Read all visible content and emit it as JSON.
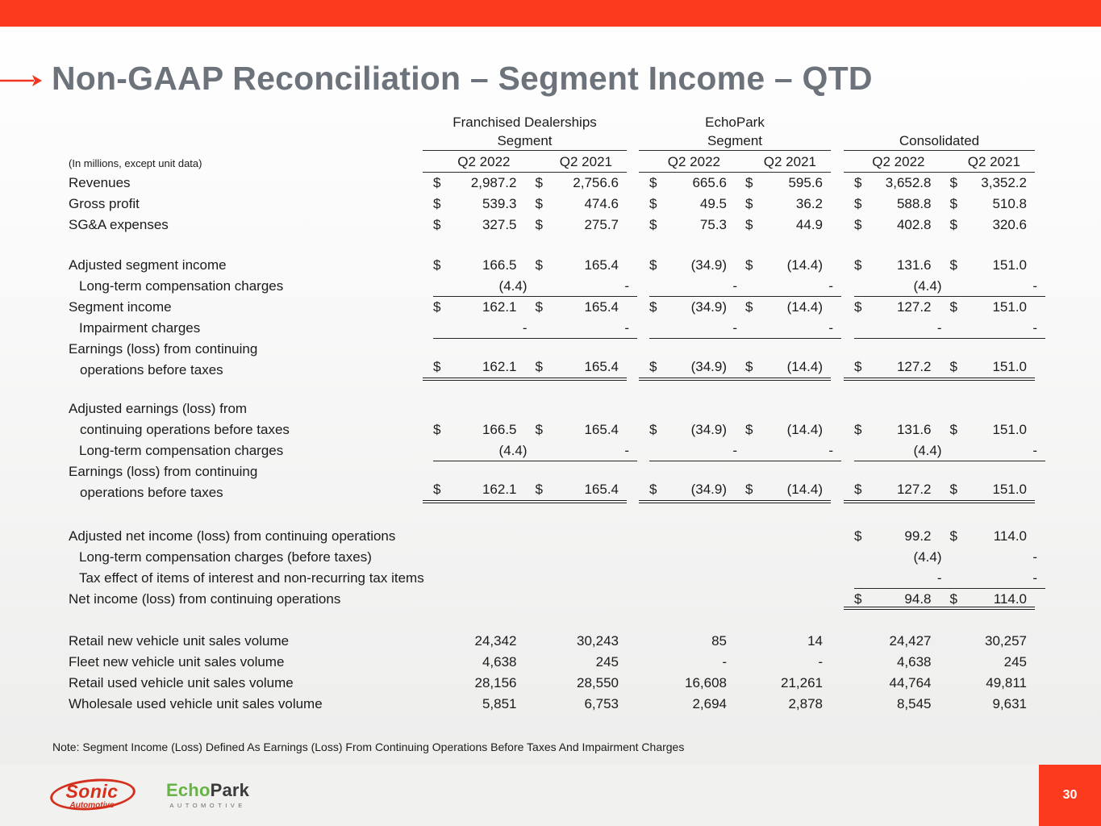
{
  "slide": {
    "title": "Non-GAAP Reconciliation – Segment Income – QTD",
    "note": "Note: Segment Income (Loss) Defined As Earnings (Loss) From Continuing Operations Before Taxes And Impairment Charges",
    "accent_color": "#fb3a1e",
    "title_color": "#6d737b",
    "page_number": "30"
  },
  "table": {
    "units_note": "(In millions, except unit data)",
    "groups": [
      {
        "name_line1": "Franchised Dealerships",
        "name_line2": "Segment",
        "cols": [
          "Q2 2022",
          "Q2 2021"
        ]
      },
      {
        "name_line1": "EchoPark",
        "name_line2": "Segment",
        "cols": [
          "Q2 2022",
          "Q2 2021"
        ]
      },
      {
        "name_line1": "",
        "name_line2": "Consolidated",
        "cols": [
          "Q2 2022",
          "Q2 2021"
        ]
      }
    ],
    "rows": [
      {
        "label": "Revenues",
        "dollar": true,
        "values": [
          "2,987.2",
          "2,756.6",
          "665.6",
          "595.6",
          "3,652.8",
          "3,352.2"
        ]
      },
      {
        "label": "Gross profit",
        "dollar": true,
        "values": [
          "539.3",
          "474.6",
          "49.5",
          "36.2",
          "588.8",
          "510.8"
        ]
      },
      {
        "label": "SG&A expenses",
        "dollar": true,
        "values": [
          "327.5",
          "275.7",
          "75.3",
          "44.9",
          "402.8",
          "320.6"
        ]
      },
      {
        "spacer": 24
      },
      {
        "label": "Adjusted segment income",
        "dollar": true,
        "values": [
          "166.5",
          "165.4",
          "(34.9)",
          "(14.4)",
          "131.6",
          "151.0"
        ]
      },
      {
        "label": "Long-term compensation charges",
        "indent": 1,
        "values": [
          "(4.4)",
          "-",
          "-",
          "-",
          "(4.4)",
          "-"
        ],
        "rule": "single"
      },
      {
        "label": "Segment income",
        "dollar": true,
        "values": [
          "162.1",
          "165.4",
          "(34.9)",
          "(14.4)",
          "127.2",
          "151.0"
        ]
      },
      {
        "label": "Impairment charges",
        "indent": 1,
        "values": [
          "-",
          "-",
          "-",
          "-",
          "-",
          "-"
        ],
        "rule": "single"
      },
      {
        "lines": [
          "Earnings (loss) from continuing",
          "operations before taxes"
        ],
        "dollar": true,
        "values": [
          "162.1",
          "165.4",
          "(34.9)",
          "(14.4)",
          "127.2",
          "151.0"
        ],
        "rule": "double"
      },
      {
        "spacer": 22
      },
      {
        "lines": [
          "Adjusted earnings (loss) from",
          "continuing operations before taxes"
        ],
        "dollar": true,
        "values": [
          "166.5",
          "165.4",
          "(34.9)",
          "(14.4)",
          "131.6",
          "151.0"
        ]
      },
      {
        "label": "Long-term compensation charges",
        "indent": 1,
        "values": [
          "(4.4)",
          "-",
          "-",
          "-",
          "(4.4)",
          "-"
        ],
        "rule": "single"
      },
      {
        "lines": [
          "Earnings (loss) from continuing",
          "operations before taxes"
        ],
        "dollar": true,
        "values": [
          "162.1",
          "165.4",
          "(34.9)",
          "(14.4)",
          "127.2",
          "151.0"
        ],
        "rule": "double"
      },
      {
        "spacer": 28
      },
      {
        "label": "Adjusted net income (loss) from continuing operations",
        "dollar": true,
        "values": [
          "",
          "",
          "",
          "",
          "99.2",
          "114.0"
        ]
      },
      {
        "label": "Long-term compensation charges (before taxes)",
        "indent": 1,
        "values": [
          "",
          "",
          "",
          "",
          "(4.4)",
          "-"
        ]
      },
      {
        "label": "Tax effect of items of interest and non-recurring tax items",
        "indent": 1,
        "values": [
          "",
          "",
          "",
          "",
          "-",
          "-"
        ],
        "rule": "single",
        "ruleGroups": [
          2
        ]
      },
      {
        "label": "Net income (loss) from continuing operations",
        "dollar": true,
        "values": [
          "",
          "",
          "",
          "",
          "94.8",
          "114.0"
        ],
        "rule": "double",
        "ruleGroups": [
          2
        ]
      },
      {
        "spacer": 26
      },
      {
        "label": "Retail new vehicle unit sales volume",
        "values": [
          "24,342",
          "30,243",
          "85",
          "14",
          "24,427",
          "30,257"
        ]
      },
      {
        "label": "Fleet new vehicle unit sales volume",
        "values": [
          "4,638",
          "245",
          "-",
          "-",
          "4,638",
          "245"
        ]
      },
      {
        "label": "Retail used vehicle unit sales volume",
        "values": [
          "28,156",
          "28,550",
          "16,608",
          "21,261",
          "44,764",
          "49,811"
        ]
      },
      {
        "label": "Wholesale used vehicle unit sales volume",
        "values": [
          "5,851",
          "6,753",
          "2,694",
          "2,878",
          "8,545",
          "9,631"
        ]
      }
    ]
  },
  "footer": {
    "sonic": {
      "name": "Sonic",
      "sub": "Automotive"
    },
    "echopark": {
      "part1": "Echo",
      "part2": "Park",
      "sub": "AUTOMOTIVE"
    }
  }
}
